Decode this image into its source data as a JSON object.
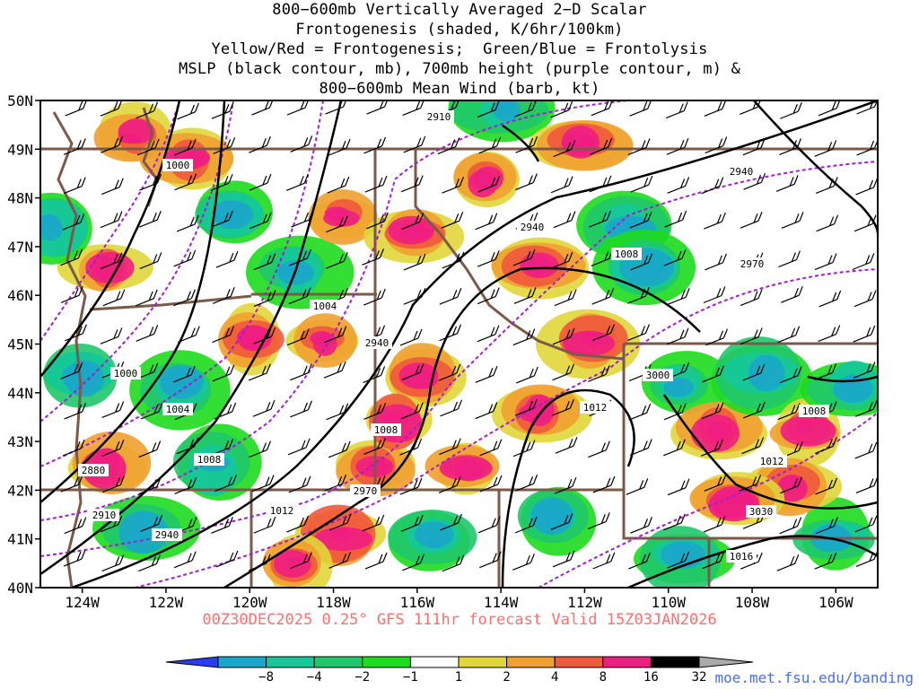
{
  "title_lines": [
    "800−600mb Vertically Averaged 2−D Scalar",
    "Frontogenesis (shaded, K/6hr/100km)",
    "Yellow/Red = Frontogenesis;  Green/Blue = Frontolysis",
    "MSLP (black contour, mb), 700mb height (purple contour, m) &",
    "800−600mb Mean Wind (barb, kt)"
  ],
  "footer": "00Z30DEC2025 0.25° GFS 111hr forecast Valid 15Z03JAN2026",
  "credit": "moe.met.fsu.edu/banding",
  "lat_labels": [
    "50N",
    "49N",
    "48N",
    "47N",
    "46N",
    "45N",
    "44N",
    "43N",
    "42N",
    "41N",
    "40N"
  ],
  "lon_labels": [
    "124W",
    "122W",
    "120W",
    "118W",
    "116W",
    "114W",
    "112W",
    "110W",
    "108W",
    "106W"
  ],
  "colorbar": {
    "labels": [
      "−8",
      "−4",
      "−2",
      "−1",
      "1",
      "2",
      "4",
      "8",
      "16",
      "32"
    ],
    "colors": [
      "#2a3cf0",
      "#1aa7c9",
      "#14c89a",
      "#1fc86a",
      "#1edc1e",
      "#ffffff",
      "#e0d63a",
      "#f0a030",
      "#f05a3c",
      "#f01e82",
      "#000000",
      "#aaaaaa"
    ]
  },
  "mslp_labels": [
    "1000",
    "1004",
    "1008",
    "1012",
    "1016"
  ],
  "height_labels": [
    "2880",
    "2910",
    "2940",
    "2970",
    "3000",
    "3030"
  ],
  "map": {
    "lat_range": [
      40,
      50
    ],
    "lon_range": [
      -125,
      -105
    ]
  }
}
